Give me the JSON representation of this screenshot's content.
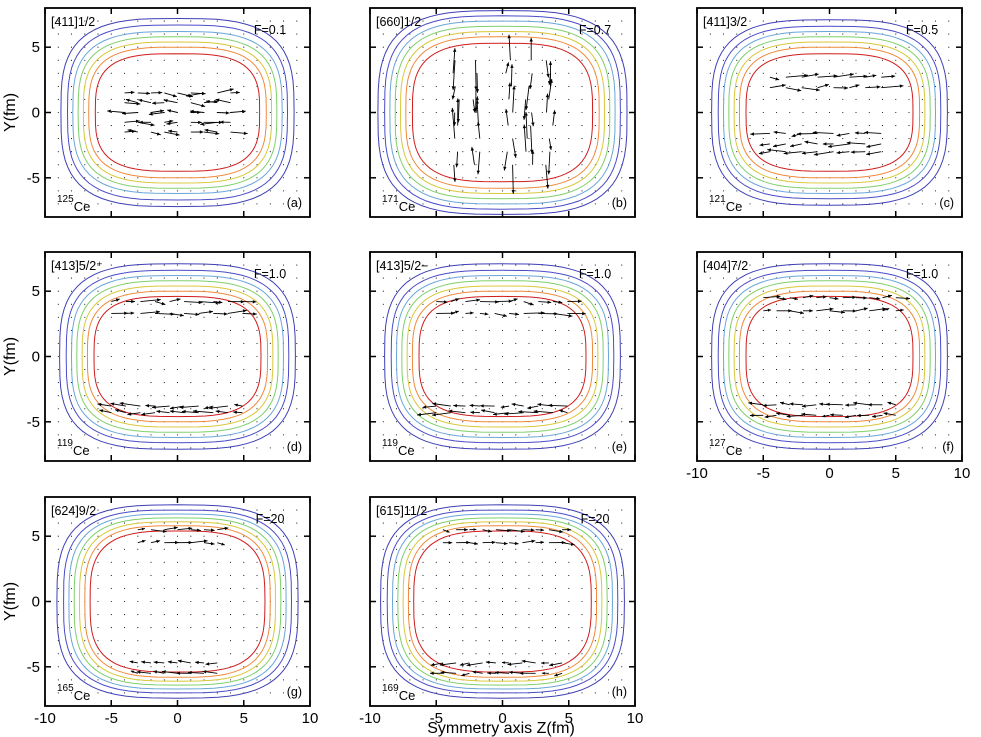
{
  "figure": {
    "xlabel": "Symmetry axis Z(fm)",
    "ylabel": "Y(fm)",
    "contour_colors": [
      "#d01c1c",
      "#f08a3c",
      "#d8c83a",
      "#7ecf6a",
      "#6aa6d8",
      "#4b4bc8",
      "#3f3fb6"
    ],
    "arrow_color": "#000000",
    "grid_dot_color": "#000000"
  },
  "chart_data": [
    {
      "type": "vector-field",
      "label": "[411]1/2",
      "factor": "F=0.1",
      "mass": "125",
      "element": "Ce",
      "tag": "(a)",
      "xlim": [
        -10,
        10
      ],
      "ylim": [
        -8,
        8
      ],
      "xticks": [
        -10,
        -5,
        0,
        5,
        10
      ],
      "yticks": [
        -5,
        0,
        5
      ],
      "contour_halfwidths_z": [
        6.2,
        6.7,
        7.1,
        7.5,
        7.9,
        8.3,
        8.8
      ],
      "contour_halfwidths_y": [
        4.5,
        5.0,
        5.4,
        5.8,
        6.2,
        6.7,
        7.2
      ],
      "current_pattern": "central",
      "current_extent": [
        4.5,
        2.0
      ]
    },
    {
      "type": "vector-field",
      "label": "[660]1/2",
      "factor": "F=0.7",
      "mass": "171",
      "element": "Ce",
      "tag": "(b)",
      "xlim": [
        -10,
        10
      ],
      "ylim": [
        -8,
        8
      ],
      "xticks": [
        -10,
        -5,
        0,
        5,
        10
      ],
      "yticks": [
        -5,
        0,
        5
      ],
      "contour_halfwidths_z": [
        6.8,
        7.3,
        7.7,
        8.1,
        8.5,
        8.9,
        9.4
      ],
      "contour_halfwidths_y": [
        5.3,
        5.8,
        6.2,
        6.6,
        7.0,
        7.4,
        7.8
      ],
      "current_pattern": "vertical",
      "current_extent": [
        4.0,
        4.5
      ]
    },
    {
      "type": "vector-field",
      "label": "[411]3/2",
      "factor": "F=0.5",
      "mass": "121",
      "element": "Ce",
      "tag": "(c)",
      "xlim": [
        -10,
        10
      ],
      "ylim": [
        -8,
        8
      ],
      "xticks": [
        -10,
        -5,
        0,
        5,
        10
      ],
      "yticks": [
        -5,
        0,
        5
      ],
      "contour_halfwidths_z": [
        6.3,
        6.8,
        7.2,
        7.6,
        8.0,
        8.4,
        8.9
      ],
      "contour_halfwidths_y": [
        4.5,
        5.0,
        5.4,
        5.8,
        6.2,
        6.6,
        7.1
      ],
      "current_pattern": "mid-bands",
      "current_extent": [
        5.0,
        3.0
      ]
    },
    {
      "type": "vector-field",
      "label": "[413]5/2⁺",
      "factor": "F=1.0",
      "mass": "119",
      "element": "Ce",
      "tag": "(d)",
      "xlim": [
        -10,
        10
      ],
      "ylim": [
        -8,
        8
      ],
      "xticks": [
        -10,
        -5,
        0,
        5,
        10
      ],
      "yticks": [
        -5,
        0,
        5
      ],
      "contour_halfwidths_z": [
        6.3,
        6.8,
        7.2,
        7.6,
        8.0,
        8.4,
        8.9
      ],
      "contour_halfwidths_y": [
        4.6,
        5.0,
        5.4,
        5.8,
        6.2,
        6.6,
        7.1
      ],
      "current_pattern": "outer-bands",
      "current_extent": [
        5.5,
        4.0
      ]
    },
    {
      "type": "vector-field",
      "label": "[413]5/2−",
      "factor": "F=1.0",
      "mass": "119",
      "element": "Ce",
      "tag": "(e)",
      "xlim": [
        -10,
        10
      ],
      "ylim": [
        -8,
        8
      ],
      "xticks": [
        -10,
        -5,
        0,
        5,
        10
      ],
      "yticks": [
        -5,
        0,
        5
      ],
      "contour_halfwidths_z": [
        6.3,
        6.8,
        7.2,
        7.6,
        8.0,
        8.4,
        8.9
      ],
      "contour_halfwidths_y": [
        4.6,
        5.0,
        5.4,
        5.8,
        6.2,
        6.6,
        7.1
      ],
      "current_pattern": "outer-bands",
      "current_extent": [
        5.5,
        4.0
      ]
    },
    {
      "type": "vector-field",
      "label": "[404]7/2",
      "factor": "F=1.0",
      "mass": "127",
      "element": "Ce",
      "tag": "(f)",
      "xlim": [
        -10,
        10
      ],
      "ylim": [
        -8,
        8
      ],
      "xticks": [
        -10,
        -5,
        0,
        5,
        10
      ],
      "yticks": [
        -5,
        0,
        5
      ],
      "contour_halfwidths_z": [
        6.3,
        6.8,
        7.2,
        7.6,
        8.0,
        8.4,
        8.9
      ],
      "contour_halfwidths_y": [
        4.6,
        5.0,
        5.4,
        5.8,
        6.2,
        6.6,
        7.1
      ],
      "current_pattern": "edge-bands",
      "current_extent": [
        5.0,
        4.5
      ]
    },
    {
      "type": "vector-field",
      "label": "[624]9/2",
      "factor": "F=20",
      "mass": "165",
      "element": "Ce",
      "tag": "(g)",
      "xlim": [
        -10,
        10
      ],
      "ylim": [
        -8,
        8
      ],
      "xticks": [
        -10,
        -5,
        0,
        5,
        10
      ],
      "yticks": [
        -5,
        0,
        5
      ],
      "contour_halfwidths_z": [
        6.6,
        7.0,
        7.4,
        7.8,
        8.2,
        8.6,
        9.1
      ],
      "contour_halfwidths_y": [
        5.4,
        5.8,
        6.1,
        6.4,
        6.7,
        7.0,
        7.4
      ],
      "current_pattern": "edge-bands",
      "current_extent": [
        3.0,
        5.5
      ]
    },
    {
      "type": "vector-field",
      "label": "[615]11/2",
      "factor": "F=20",
      "mass": "169",
      "element": "Ce",
      "tag": "(h)",
      "xlim": [
        -10,
        10
      ],
      "ylim": [
        -8,
        8
      ],
      "xticks": [
        -10,
        -5,
        0,
        5,
        10
      ],
      "yticks": [
        -5,
        0,
        5
      ],
      "contour_halfwidths_z": [
        6.7,
        7.1,
        7.5,
        7.9,
        8.3,
        8.7,
        9.2
      ],
      "contour_halfwidths_y": [
        5.4,
        5.8,
        6.1,
        6.4,
        6.7,
        7.0,
        7.4
      ],
      "current_pattern": "edge-bands",
      "current_extent": [
        4.5,
        5.5
      ]
    }
  ]
}
